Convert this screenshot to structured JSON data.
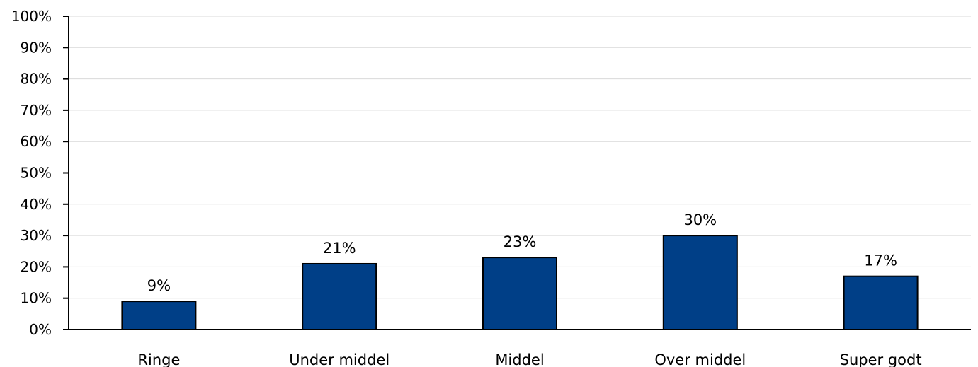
{
  "chart_data": {
    "type": "bar",
    "categories": [
      "Ringe",
      "Under middel",
      "Middel",
      "Over middel",
      "Super godt"
    ],
    "values": [
      9,
      21,
      23,
      30,
      17
    ],
    "data_labels": [
      "9%",
      "21%",
      "23%",
      "30%",
      "17%"
    ],
    "ylim": [
      0,
      100
    ],
    "yticks": [
      "0%",
      "10%",
      "20%",
      "30%",
      "40%",
      "50%",
      "60%",
      "70%",
      "80%",
      "90%",
      "100%"
    ],
    "title": "",
    "xlabel": "",
    "ylabel": "",
    "grid": true,
    "legend": "none",
    "colors": {
      "bar": "#003f87",
      "grid": "#d9d9d9",
      "axis": "#000000"
    }
  }
}
